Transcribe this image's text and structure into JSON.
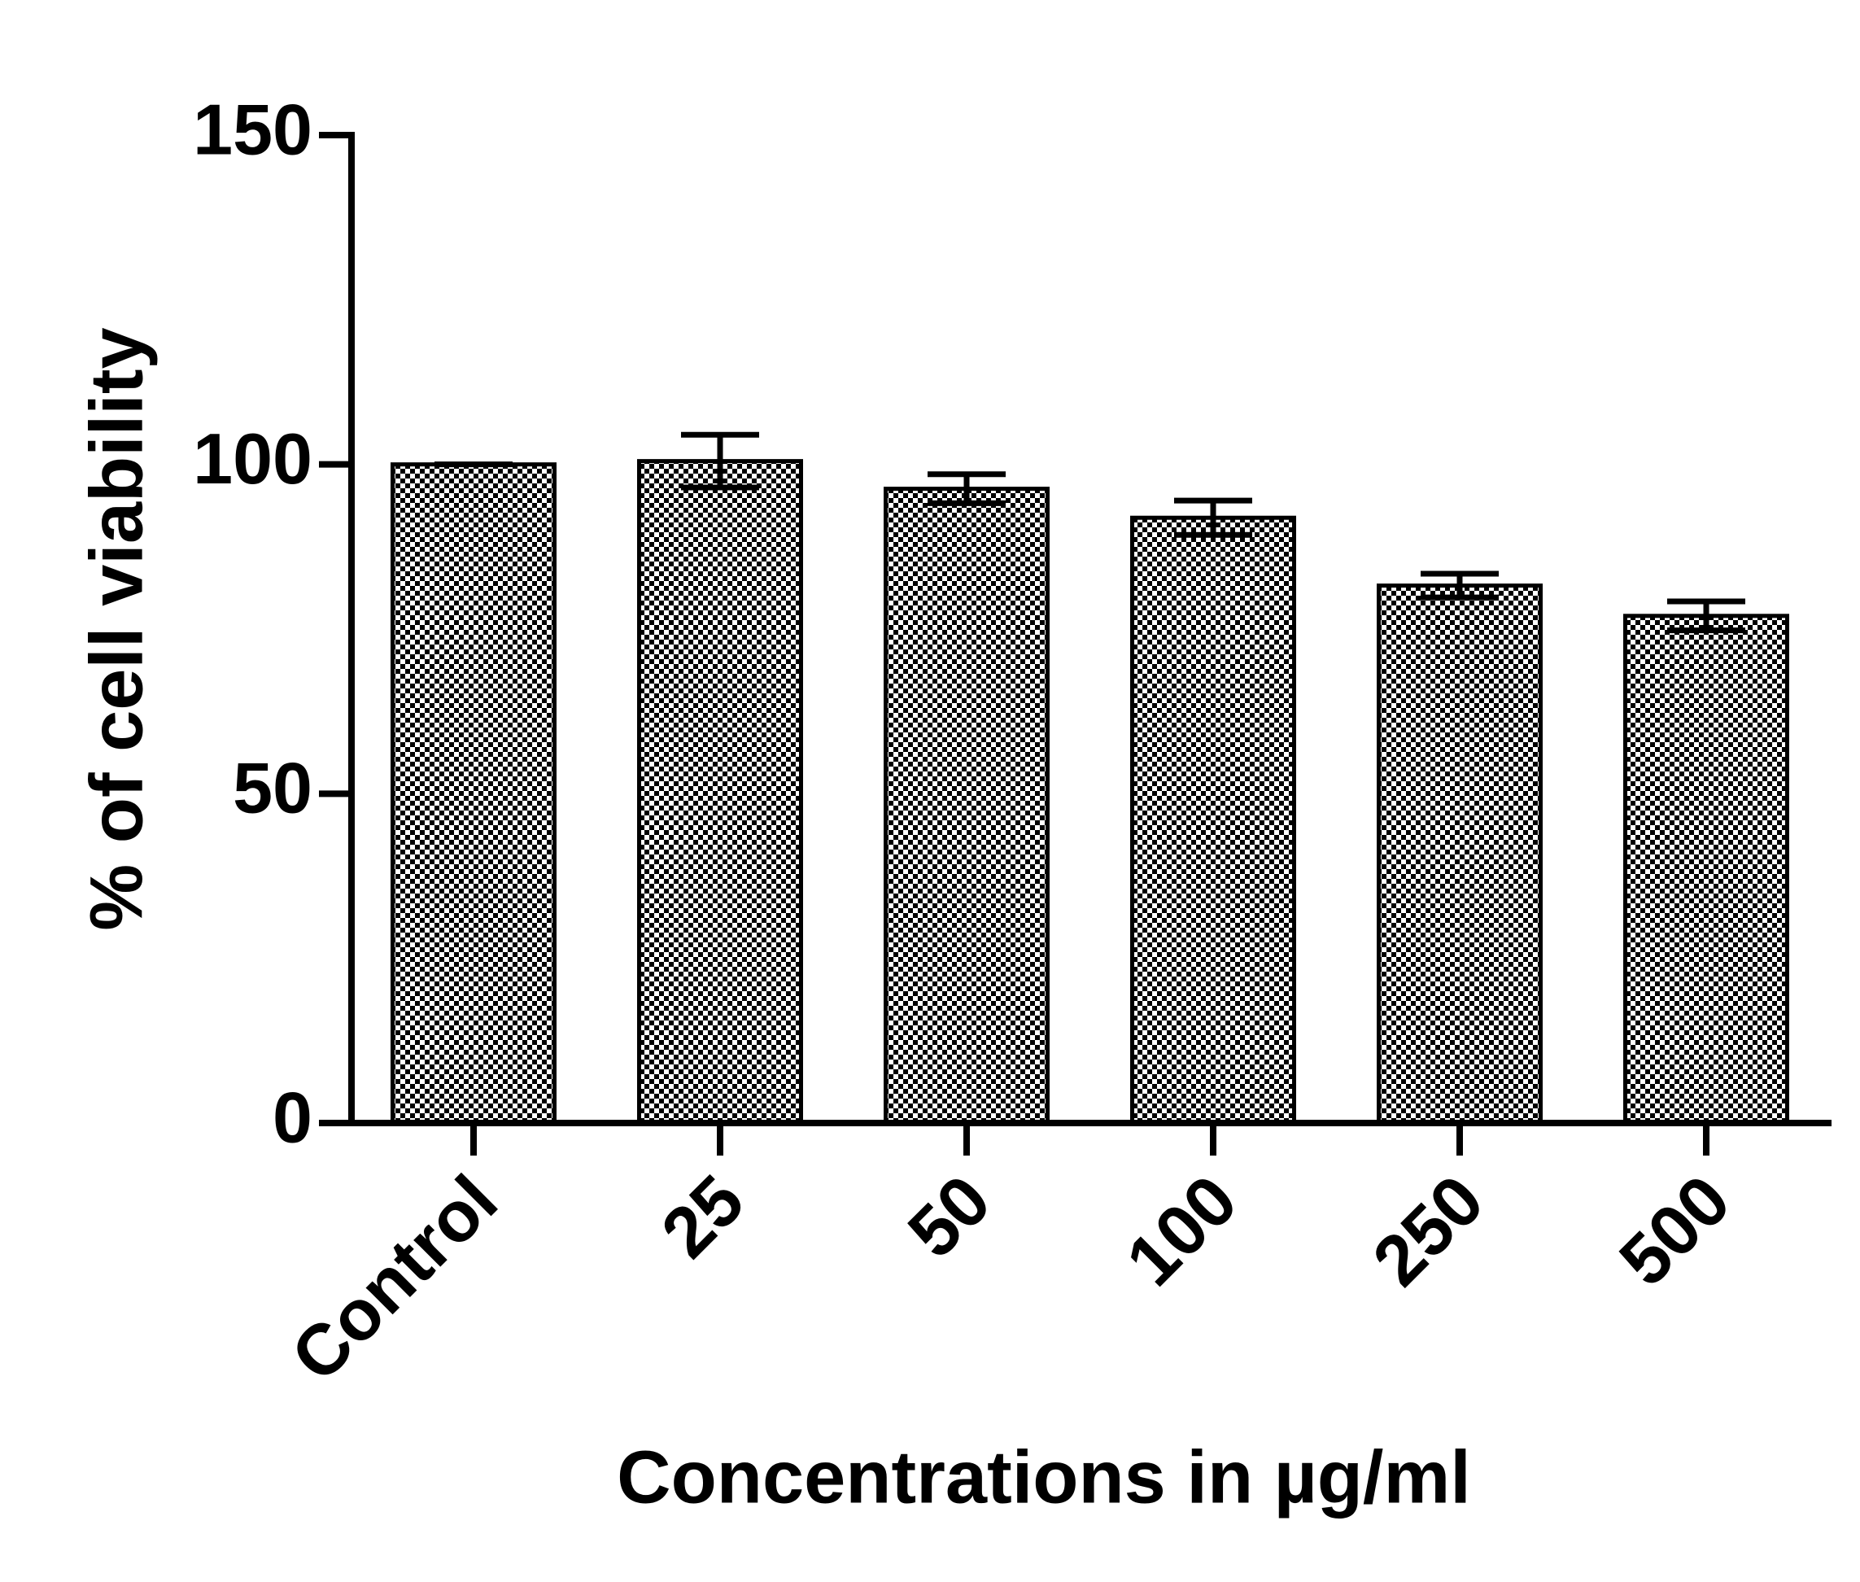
{
  "chart_data": {
    "type": "bar",
    "x_label": "Concentrations in µg/ml",
    "y_label": "% of cell viability",
    "categories": [
      "Control",
      "25",
      "50",
      "100",
      "250",
      "500"
    ],
    "values": [
      100,
      100.5,
      96.3,
      91.9,
      81.6,
      77.0
    ],
    "errors": [
      0,
      4.0,
      2.2,
      2.6,
      1.8,
      2.2
    ],
    "color": "#000000",
    "ylim": [
      0,
      150
    ],
    "yticks": [
      0,
      50,
      100,
      150
    ],
    "grid": false
  }
}
